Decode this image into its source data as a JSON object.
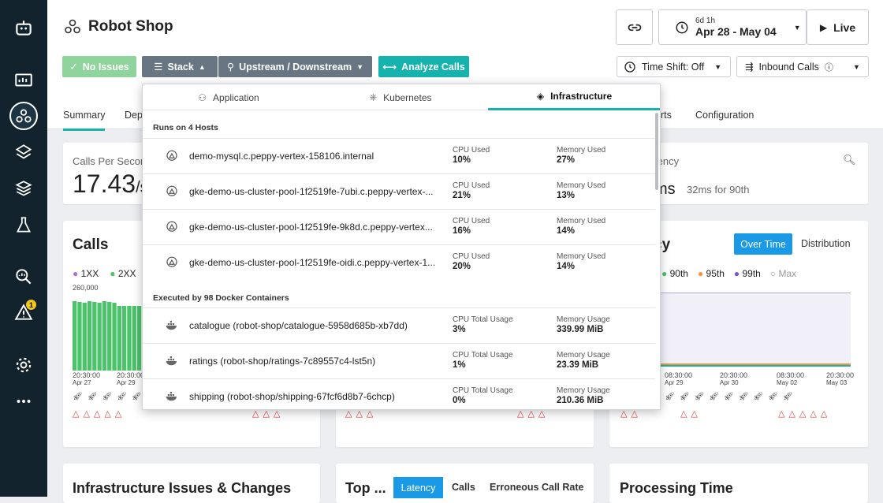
{
  "app": {
    "title": "Robot Shop"
  },
  "colors": {
    "accent": "#16b3ae",
    "sidebar": "#12232e",
    "ok": "#8fd49c",
    "stack": "#687683",
    "analyze": "#16b3ae",
    "bar_green": "#4cc26a"
  },
  "sidebar": {
    "badge_count": "1",
    "icons": [
      "robot-icon",
      "monitor-icon",
      "application-icon",
      "platform-icon",
      "infrastructure-icon",
      "lab-icon",
      "analytics-icon",
      "alert-icon",
      "settings-icon",
      "more-icon"
    ]
  },
  "toolbar": {
    "no_issues": "No Issues",
    "stack": "Stack",
    "upstream": "Upstream / Downstream",
    "analyze": "Analyze Calls",
    "range_small": "6d 1h",
    "range_main": "Apr 28 - May 04",
    "live": "Live",
    "time_shift": "Time Shift: Off",
    "inbound": "Inbound Calls"
  },
  "tabs": {
    "summary": "Summary",
    "dep": "Dep",
    "alerts": "erts",
    "configuration": "Configuration"
  },
  "cards": {
    "cps_label": "Calls Per Secon",
    "cps_value": "17.43",
    "cps_unit": "/s",
    "latency_label": "tency",
    "latency_value": "ms",
    "latency_sub": "32ms for 90th",
    "calls_title": "Calls",
    "legend_1xx": "1XX",
    "legend_2xx": "2XX",
    "calls_ymax": "260,000",
    "latency_title": "cy",
    "over_time": "Over Time",
    "distribution": "Distribution",
    "p90": "90th",
    "p95": "95th",
    "p99": "99th",
    "max": "Max",
    "time_left1": "20:30:00",
    "date_left1": "Apr 27",
    "time_left2": "20:30:00",
    "date_left2": "Apr 29",
    "times_right": [
      {
        "t": "20:30:00",
        "d": ""
      },
      {
        "t": "08:30:00",
        "d": "Apr 29"
      },
      {
        "t": "20:30:00",
        "d": "Apr 30"
      },
      {
        "t": "08:30:00",
        "d": "May 02"
      },
      {
        "t": "20:30:00",
        "d": "May 03"
      }
    ],
    "infra_title": "Infrastructure Issues & Changes",
    "top_title": "Top ...",
    "top_latency": "Latency",
    "top_calls": "Calls",
    "top_err": "Erroneous Call Rate",
    "proc_title": "Processing Time"
  },
  "dropdown": {
    "tabs": [
      "Application",
      "Kubernetes",
      "Infrastructure"
    ],
    "hosts_title": "Runs on 4 Hosts",
    "hosts": [
      {
        "name": "demo-mysql.c.peppy-vertex-158106.internal",
        "cpu_label": "CPU Used",
        "cpu": "10%",
        "mem_label": "Memory Used",
        "mem": "27%"
      },
      {
        "name": "gke-demo-us-cluster-pool-1f2519fe-7ubi.c.peppy-vertex-...",
        "cpu_label": "CPU Used",
        "cpu": "21%",
        "mem_label": "Memory Used",
        "mem": "13%"
      },
      {
        "name": "gke-demo-us-cluster-pool-1f2519fe-9k8d.c.peppy-vertex...",
        "cpu_label": "CPU Used",
        "cpu": "16%",
        "mem_label": "Memory Used",
        "mem": "14%"
      },
      {
        "name": "gke-demo-us-cluster-pool-1f2519fe-oidi.c.peppy-vertex-1...",
        "cpu_label": "CPU Used",
        "cpu": "20%",
        "mem_label": "Memory Used",
        "mem": "14%"
      }
    ],
    "containers_title": "Executed by 98 Docker Containers",
    "containers": [
      {
        "name": "catalogue (robot-shop/catalogue-5958d685b-xb7dd)",
        "cpu_label": "CPU Total Usage",
        "cpu": "3%",
        "mem_label": "Memory Usage",
        "mem": "339.99 MiB"
      },
      {
        "name": "ratings (robot-shop/ratings-7c89557c4-lst5n)",
        "cpu_label": "CPU Total Usage",
        "cpu": "1%",
        "mem_label": "Memory Usage",
        "mem": "23.39 MiB"
      },
      {
        "name": "shipping (robot-shop/shipping-67fcf6d8b7-6chcp)",
        "cpu_label": "CPU Total Usage",
        "cpu": "0%",
        "mem_label": "Memory Usage",
        "mem": "210.36 MiB"
      }
    ]
  }
}
